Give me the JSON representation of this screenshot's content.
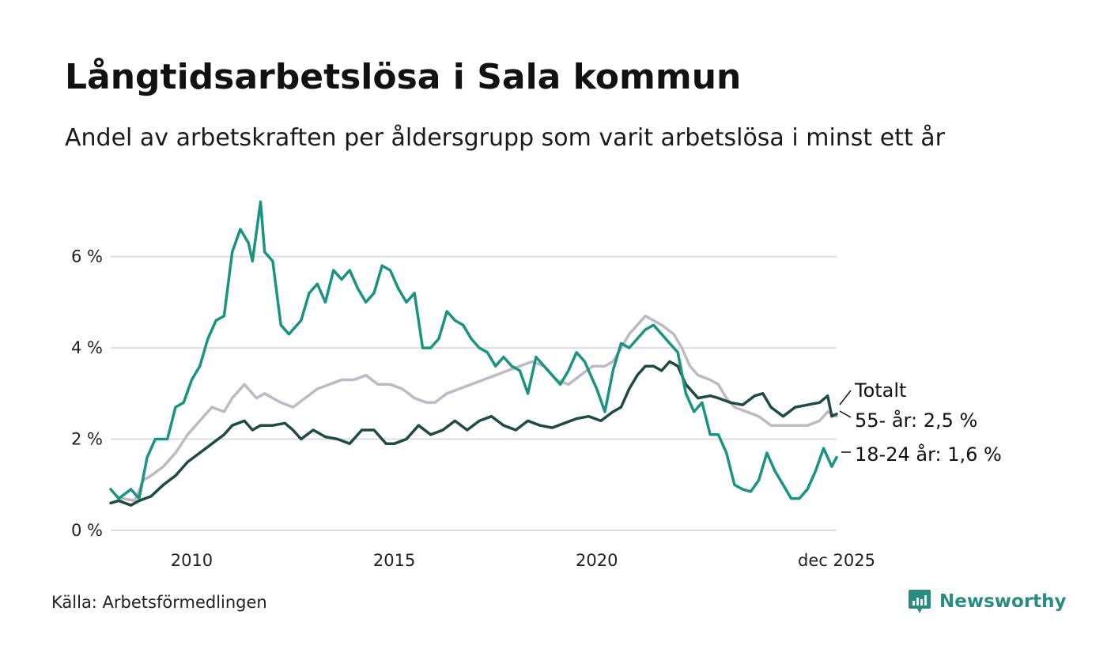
{
  "chart_data": {
    "type": "line",
    "title": "Långtidsarbetslösa i Sala kommun",
    "subtitle": "Andel av arbetskraften per åldersgrupp som varit arbetslösa i minst ett år",
    "x_range": [
      2008.0,
      2025.92
    ],
    "ylim": [
      0,
      7.5
    ],
    "y_ticks": [
      {
        "v": 0,
        "label": "0 %"
      },
      {
        "v": 2,
        "label": "2 %"
      },
      {
        "v": 4,
        "label": "4 %"
      },
      {
        "v": 6,
        "label": "6 %"
      }
    ],
    "x_ticks": [
      {
        "v": 2010,
        "label": "2010"
      },
      {
        "v": 2015,
        "label": "2015"
      },
      {
        "v": 2020,
        "label": "2020"
      },
      {
        "v": 2025.92,
        "label": "dec 2025"
      }
    ],
    "grid": true,
    "series": [
      {
        "name": "55- år",
        "color": "#bdbac6",
        "end_label": "55- år: 2,5 %",
        "points": [
          [
            2008.0,
            0.6
          ],
          [
            2008.3,
            0.7
          ],
          [
            2008.6,
            0.65
          ],
          [
            2008.8,
            1.1
          ],
          [
            2009.0,
            1.2
          ],
          [
            2009.3,
            1.4
          ],
          [
            2009.6,
            1.7
          ],
          [
            2009.9,
            2.1
          ],
          [
            2010.2,
            2.4
          ],
          [
            2010.5,
            2.7
          ],
          [
            2010.8,
            2.6
          ],
          [
            2011.0,
            2.9
          ],
          [
            2011.3,
            3.2
          ],
          [
            2011.6,
            2.9
          ],
          [
            2011.8,
            3.0
          ],
          [
            2012.2,
            2.8
          ],
          [
            2012.5,
            2.7
          ],
          [
            2012.8,
            2.9
          ],
          [
            2013.1,
            3.1
          ],
          [
            2013.4,
            3.2
          ],
          [
            2013.7,
            3.3
          ],
          [
            2014.0,
            3.3
          ],
          [
            2014.3,
            3.4
          ],
          [
            2014.6,
            3.2
          ],
          [
            2014.9,
            3.2
          ],
          [
            2015.2,
            3.1
          ],
          [
            2015.5,
            2.9
          ],
          [
            2015.8,
            2.8
          ],
          [
            2016.0,
            2.8
          ],
          [
            2016.3,
            3.0
          ],
          [
            2016.6,
            3.1
          ],
          [
            2016.9,
            3.2
          ],
          [
            2017.2,
            3.3
          ],
          [
            2017.5,
            3.4
          ],
          [
            2017.8,
            3.5
          ],
          [
            2018.1,
            3.6
          ],
          [
            2018.4,
            3.7
          ],
          [
            2018.7,
            3.6
          ],
          [
            2019.0,
            3.3
          ],
          [
            2019.3,
            3.2
          ],
          [
            2019.6,
            3.4
          ],
          [
            2019.9,
            3.6
          ],
          [
            2020.2,
            3.6
          ],
          [
            2020.4,
            3.7
          ],
          [
            2020.6,
            4.0
          ],
          [
            2020.8,
            4.3
          ],
          [
            2021.0,
            4.5
          ],
          [
            2021.2,
            4.7
          ],
          [
            2021.4,
            4.6
          ],
          [
            2021.6,
            4.5
          ],
          [
            2021.9,
            4.3
          ],
          [
            2022.1,
            4.0
          ],
          [
            2022.3,
            3.6
          ],
          [
            2022.5,
            3.4
          ],
          [
            2022.8,
            3.3
          ],
          [
            2023.0,
            3.2
          ],
          [
            2023.2,
            2.9
          ],
          [
            2023.4,
            2.7
          ],
          [
            2023.7,
            2.6
          ],
          [
            2024.0,
            2.5
          ],
          [
            2024.3,
            2.3
          ],
          [
            2024.6,
            2.3
          ],
          [
            2024.9,
            2.3
          ],
          [
            2025.2,
            2.3
          ],
          [
            2025.5,
            2.4
          ],
          [
            2025.7,
            2.6
          ],
          [
            2025.92,
            2.5
          ]
        ]
      },
      {
        "name": "Totalt",
        "color": "#1f4b43",
        "end_label": "Totalt",
        "points": [
          [
            2008.0,
            0.6
          ],
          [
            2008.2,
            0.65
          ],
          [
            2008.5,
            0.55
          ],
          [
            2008.7,
            0.65
          ],
          [
            2009.0,
            0.75
          ],
          [
            2009.3,
            1.0
          ],
          [
            2009.6,
            1.2
          ],
          [
            2009.9,
            1.5
          ],
          [
            2010.2,
            1.7
          ],
          [
            2010.5,
            1.9
          ],
          [
            2010.8,
            2.1
          ],
          [
            2011.0,
            2.3
          ],
          [
            2011.3,
            2.4
          ],
          [
            2011.5,
            2.2
          ],
          [
            2011.7,
            2.3
          ],
          [
            2012.0,
            2.3
          ],
          [
            2012.3,
            2.35
          ],
          [
            2012.5,
            2.2
          ],
          [
            2012.7,
            2.0
          ],
          [
            2013.0,
            2.2
          ],
          [
            2013.3,
            2.05
          ],
          [
            2013.6,
            2.0
          ],
          [
            2013.9,
            1.9
          ],
          [
            2014.2,
            2.2
          ],
          [
            2014.5,
            2.2
          ],
          [
            2014.8,
            1.9
          ],
          [
            2015.0,
            1.9
          ],
          [
            2015.3,
            2.0
          ],
          [
            2015.6,
            2.3
          ],
          [
            2015.9,
            2.1
          ],
          [
            2016.2,
            2.2
          ],
          [
            2016.5,
            2.4
          ],
          [
            2016.8,
            2.2
          ],
          [
            2017.1,
            2.4
          ],
          [
            2017.4,
            2.5
          ],
          [
            2017.7,
            2.3
          ],
          [
            2018.0,
            2.2
          ],
          [
            2018.3,
            2.4
          ],
          [
            2018.6,
            2.3
          ],
          [
            2018.9,
            2.25
          ],
          [
            2019.2,
            2.35
          ],
          [
            2019.5,
            2.45
          ],
          [
            2019.8,
            2.5
          ],
          [
            2020.1,
            2.4
          ],
          [
            2020.4,
            2.6
          ],
          [
            2020.6,
            2.7
          ],
          [
            2020.8,
            3.1
          ],
          [
            2021.0,
            3.4
          ],
          [
            2021.2,
            3.6
          ],
          [
            2021.4,
            3.6
          ],
          [
            2021.6,
            3.5
          ],
          [
            2021.8,
            3.7
          ],
          [
            2022.0,
            3.6
          ],
          [
            2022.2,
            3.2
          ],
          [
            2022.5,
            2.9
          ],
          [
            2022.8,
            2.95
          ],
          [
            2023.0,
            2.9
          ],
          [
            2023.3,
            2.8
          ],
          [
            2023.6,
            2.75
          ],
          [
            2023.9,
            2.95
          ],
          [
            2024.1,
            3.0
          ],
          [
            2024.3,
            2.7
          ],
          [
            2024.6,
            2.5
          ],
          [
            2024.9,
            2.7
          ],
          [
            2025.2,
            2.75
          ],
          [
            2025.5,
            2.8
          ],
          [
            2025.7,
            2.95
          ],
          [
            2025.8,
            2.5
          ],
          [
            2025.92,
            2.55
          ]
        ]
      },
      {
        "name": "18-24 år",
        "color": "#1a9383",
        "end_label": "18-24 år: 1,6 %",
        "points": [
          [
            2008.0,
            0.9
          ],
          [
            2008.2,
            0.7
          ],
          [
            2008.5,
            0.9
          ],
          [
            2008.7,
            0.7
          ],
          [
            2008.9,
            1.6
          ],
          [
            2009.1,
            2.0
          ],
          [
            2009.4,
            2.0
          ],
          [
            2009.6,
            2.7
          ],
          [
            2009.8,
            2.8
          ],
          [
            2010.0,
            3.3
          ],
          [
            2010.2,
            3.6
          ],
          [
            2010.4,
            4.2
          ],
          [
            2010.6,
            4.6
          ],
          [
            2010.8,
            4.7
          ],
          [
            2011.0,
            6.1
          ],
          [
            2011.2,
            6.6
          ],
          [
            2011.4,
            6.3
          ],
          [
            2011.5,
            5.9
          ],
          [
            2011.7,
            7.2
          ],
          [
            2011.8,
            6.1
          ],
          [
            2012.0,
            5.9
          ],
          [
            2012.2,
            4.5
          ],
          [
            2012.4,
            4.3
          ],
          [
            2012.7,
            4.6
          ],
          [
            2012.9,
            5.2
          ],
          [
            2013.1,
            5.4
          ],
          [
            2013.3,
            5.0
          ],
          [
            2013.5,
            5.7
          ],
          [
            2013.7,
            5.5
          ],
          [
            2013.9,
            5.7
          ],
          [
            2014.1,
            5.3
          ],
          [
            2014.3,
            5.0
          ],
          [
            2014.5,
            5.2
          ],
          [
            2014.7,
            5.8
          ],
          [
            2014.9,
            5.7
          ],
          [
            2015.1,
            5.3
          ],
          [
            2015.3,
            5.0
          ],
          [
            2015.5,
            5.2
          ],
          [
            2015.7,
            4.0
          ],
          [
            2015.9,
            4.0
          ],
          [
            2016.1,
            4.2
          ],
          [
            2016.3,
            4.8
          ],
          [
            2016.5,
            4.6
          ],
          [
            2016.7,
            4.5
          ],
          [
            2016.9,
            4.2
          ],
          [
            2017.1,
            4.0
          ],
          [
            2017.3,
            3.9
          ],
          [
            2017.5,
            3.6
          ],
          [
            2017.7,
            3.8
          ],
          [
            2017.9,
            3.6
          ],
          [
            2018.1,
            3.5
          ],
          [
            2018.3,
            3.0
          ],
          [
            2018.5,
            3.8
          ],
          [
            2018.7,
            3.6
          ],
          [
            2018.9,
            3.4
          ],
          [
            2019.1,
            3.2
          ],
          [
            2019.3,
            3.5
          ],
          [
            2019.5,
            3.9
          ],
          [
            2019.7,
            3.7
          ],
          [
            2019.9,
            3.3
          ],
          [
            2020.0,
            3.1
          ],
          [
            2020.2,
            2.6
          ],
          [
            2020.4,
            3.5
          ],
          [
            2020.6,
            4.1
          ],
          [
            2020.8,
            4.0
          ],
          [
            2021.0,
            4.2
          ],
          [
            2021.2,
            4.4
          ],
          [
            2021.4,
            4.5
          ],
          [
            2021.6,
            4.3
          ],
          [
            2021.8,
            4.1
          ],
          [
            2022.0,
            3.9
          ],
          [
            2022.2,
            3.0
          ],
          [
            2022.4,
            2.6
          ],
          [
            2022.6,
            2.8
          ],
          [
            2022.8,
            2.1
          ],
          [
            2023.0,
            2.1
          ],
          [
            2023.2,
            1.7
          ],
          [
            2023.4,
            1.0
          ],
          [
            2023.6,
            0.9
          ],
          [
            2023.8,
            0.85
          ],
          [
            2024.0,
            1.1
          ],
          [
            2024.2,
            1.7
          ],
          [
            2024.4,
            1.3
          ],
          [
            2024.6,
            1.0
          ],
          [
            2024.8,
            0.7
          ],
          [
            2025.0,
            0.7
          ],
          [
            2025.2,
            0.9
          ],
          [
            2025.4,
            1.3
          ],
          [
            2025.6,
            1.8
          ],
          [
            2025.8,
            1.4
          ],
          [
            2025.92,
            1.6
          ]
        ]
      }
    ]
  },
  "footer": {
    "source": "Källa: Arbetsförmedlingen",
    "brand": "Newsworthy"
  },
  "colors": {
    "grid": "#dddddd",
    "brand": "#2a8c80"
  }
}
